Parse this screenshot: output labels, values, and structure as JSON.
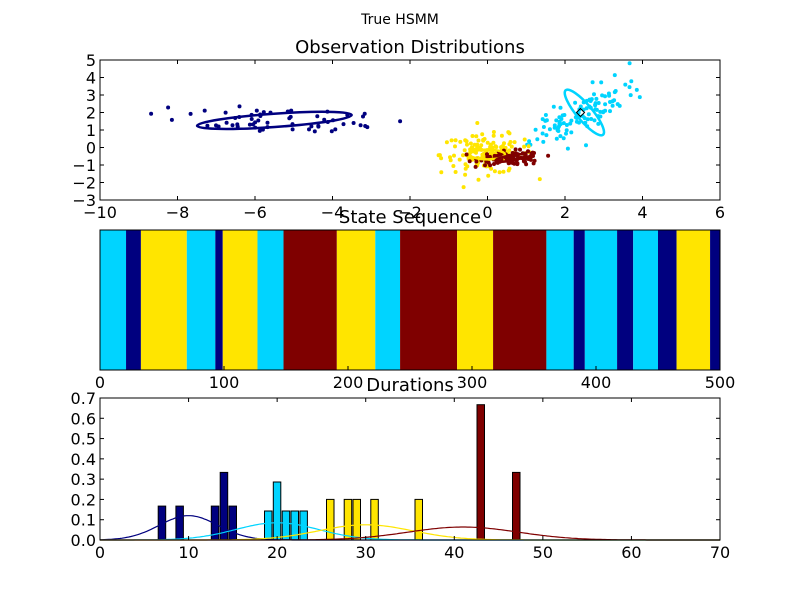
{
  "figure": {
    "suptitle": "True HSMM"
  },
  "colors": {
    "state1": "#00007f",
    "state2": "#00d4ff",
    "state3": "#ffe500",
    "state4": "#7f0000"
  },
  "chart_data": [
    {
      "type": "scatter",
      "title": "Observation Distributions",
      "xlim": [
        -10,
        6
      ],
      "ylim": [
        -3,
        5
      ],
      "xticks": [
        -10,
        -8,
        -6,
        -4,
        -2,
        0,
        2,
        4,
        6
      ],
      "yticks": [
        -3,
        -2,
        -1,
        0,
        1,
        2,
        3,
        4,
        5
      ],
      "clusters": [
        {
          "color": "#00007f",
          "center": [
            -5.5,
            1.55
          ],
          "spread": [
            1.6,
            0.35
          ],
          "count": 60,
          "ellipse": {
            "rx": 2.0,
            "ry": 0.38,
            "angle_deg": -4
          }
        },
        {
          "color": "#00d4ff",
          "center": [
            2.5,
            2.0
          ],
          "spread": [
            0.7,
            1.0
          ],
          "count": 110,
          "ellipse": {
            "rx": 0.75,
            "ry": 0.45,
            "angle_deg": 50
          }
        },
        {
          "color": "#ffe500",
          "center": [
            0.0,
            -0.4
          ],
          "spread": [
            0.6,
            0.55
          ],
          "count": 150,
          "ellipse": {
            "rx": 0.45,
            "ry": 0.28,
            "angle_deg": 0
          }
        },
        {
          "color": "#7f0000",
          "center": [
            0.6,
            -0.6
          ],
          "spread": [
            0.4,
            0.2
          ],
          "count": 110,
          "ellipse": {
            "rx": 0.4,
            "ry": 0.15,
            "angle_deg": -10
          }
        }
      ],
      "marker": [
        2.4,
        2.0
      ]
    },
    {
      "type": "bar",
      "title": "State Sequence",
      "xlim": [
        0,
        500
      ],
      "xticks": [
        0,
        100,
        200,
        300,
        400,
        500
      ],
      "segments": [
        {
          "start": 0,
          "end": 21,
          "state": 2
        },
        {
          "start": 21,
          "end": 33,
          "state": 1
        },
        {
          "start": 33,
          "end": 70,
          "state": 3
        },
        {
          "start": 70,
          "end": 93,
          "state": 2
        },
        {
          "start": 93,
          "end": 99,
          "state": 1
        },
        {
          "start": 99,
          "end": 127,
          "state": 3
        },
        {
          "start": 127,
          "end": 148,
          "state": 2
        },
        {
          "start": 148,
          "end": 191,
          "state": 4
        },
        {
          "start": 191,
          "end": 222,
          "state": 3
        },
        {
          "start": 222,
          "end": 242,
          "state": 2
        },
        {
          "start": 242,
          "end": 288,
          "state": 4
        },
        {
          "start": 288,
          "end": 317,
          "state": 3
        },
        {
          "start": 317,
          "end": 360,
          "state": 4
        },
        {
          "start": 360,
          "end": 382,
          "state": 2
        },
        {
          "start": 382,
          "end": 391,
          "state": 1
        },
        {
          "start": 391,
          "end": 417,
          "state": 2
        },
        {
          "start": 417,
          "end": 430,
          "state": 1
        },
        {
          "start": 430,
          "end": 450,
          "state": 2
        },
        {
          "start": 450,
          "end": 465,
          "state": 1
        },
        {
          "start": 465,
          "end": 492,
          "state": 3
        },
        {
          "start": 492,
          "end": 500,
          "state": 1
        }
      ]
    },
    {
      "type": "bar",
      "title": "Durations",
      "xlim": [
        0,
        70
      ],
      "ylim": [
        0,
        0.7
      ],
      "xticks": [
        0,
        10,
        20,
        30,
        40,
        50,
        60,
        70
      ],
      "yticks": [
        0.0,
        0.1,
        0.2,
        0.3,
        0.4,
        0.5,
        0.6,
        0.7
      ],
      "bars": [
        {
          "x": 7,
          "height": 0.167,
          "state": 1
        },
        {
          "x": 9,
          "height": 0.167,
          "state": 1
        },
        {
          "x": 13,
          "height": 0.167,
          "state": 1
        },
        {
          "x": 14,
          "height": 0.333,
          "state": 1
        },
        {
          "x": 15,
          "height": 0.167,
          "state": 1
        },
        {
          "x": 19,
          "height": 0.143,
          "state": 2
        },
        {
          "x": 20,
          "height": 0.286,
          "state": 2
        },
        {
          "x": 21,
          "height": 0.143,
          "state": 2
        },
        {
          "x": 22,
          "height": 0.143,
          "state": 2
        },
        {
          "x": 23,
          "height": 0.143,
          "state": 2
        },
        {
          "x": 26,
          "height": 0.2,
          "state": 3
        },
        {
          "x": 28,
          "height": 0.2,
          "state": 3
        },
        {
          "x": 29,
          "height": 0.2,
          "state": 3
        },
        {
          "x": 31,
          "height": 0.2,
          "state": 3
        },
        {
          "x": 36,
          "height": 0.2,
          "state": 3
        },
        {
          "x": 43,
          "height": 0.667,
          "state": 4
        },
        {
          "x": 47,
          "height": 0.333,
          "state": 4
        }
      ],
      "curves": [
        {
          "state": 1,
          "mean": 10,
          "sd": 3.3,
          "peak": 0.12
        },
        {
          "state": 2,
          "mean": 20,
          "sd": 4.7,
          "peak": 0.085
        },
        {
          "state": 3,
          "mean": 30,
          "sd": 5.3,
          "peak": 0.075
        },
        {
          "state": 4,
          "mean": 41,
          "sd": 6.2,
          "peak": 0.064
        }
      ]
    }
  ]
}
